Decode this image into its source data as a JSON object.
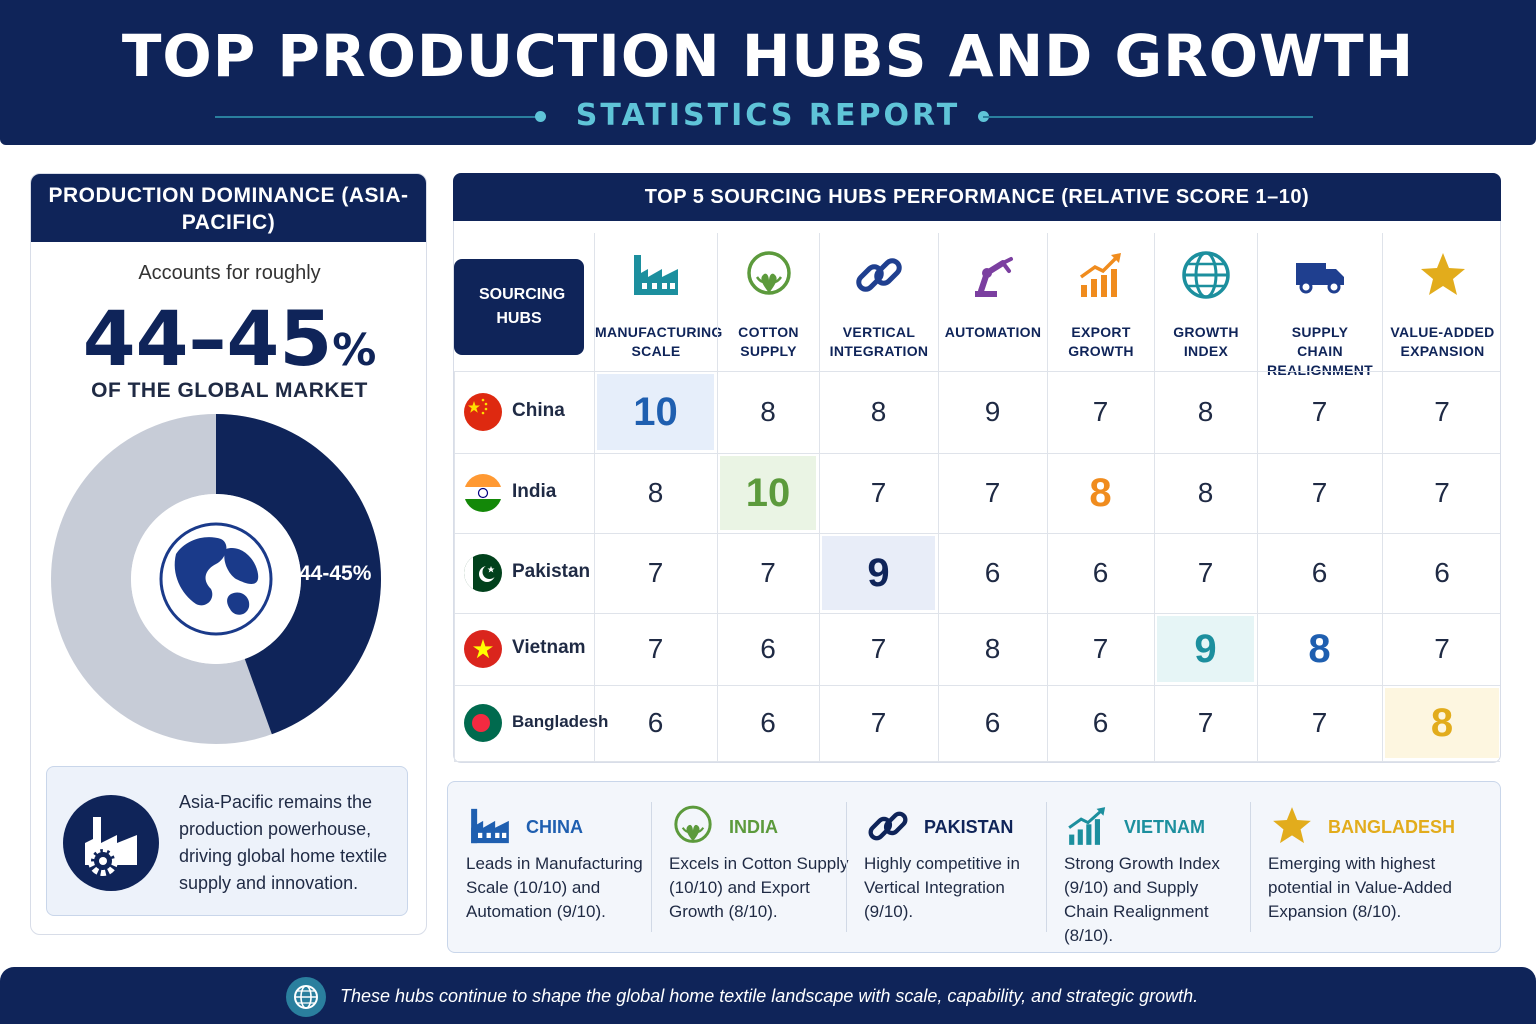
{
  "header": {
    "title": "TOP PRODUCTION HUBS AND GROWTH",
    "subtitle": "STATISTICS REPORT"
  },
  "left_panel": {
    "heading": "PRODUCTION DOMINANCE (ASIA-PACIFIC)",
    "accounts_text": "Accounts for roughly",
    "big_value": "44–45",
    "big_unit": "%",
    "of_text": "OF THE GLOBAL MARKET",
    "donut_label": "44-45%",
    "donut_share": 0.445,
    "note": "Asia-Pacific remains the production powerhouse, driving global home textile supply and innovation."
  },
  "chart_data": {
    "type": "table",
    "title": "TOP 5 SOURCING HUBS PERFORMANCE (RELATIVE SCORE 1–10)",
    "row_header": "SOURCING HUBS",
    "columns": [
      "MANUFACTURING SCALE",
      "COTTON SUPPLY",
      "VERTICAL INTEGRATION",
      "AUTOMATION",
      "EXPORT GROWTH",
      "GROWTH INDEX",
      "SUPPLY CHAIN REALIGNMENT",
      "VALUE-ADDED EXPANSION"
    ],
    "rows": [
      {
        "name": "China",
        "values": [
          10,
          8,
          8,
          9,
          7,
          8,
          7,
          7
        ]
      },
      {
        "name": "India",
        "values": [
          8,
          10,
          7,
          7,
          8,
          8,
          7,
          7
        ]
      },
      {
        "name": "Pakistan",
        "values": [
          7,
          7,
          9,
          6,
          6,
          7,
          6,
          6
        ]
      },
      {
        "name": "Vietnam",
        "values": [
          7,
          6,
          7,
          8,
          7,
          9,
          8,
          7
        ]
      },
      {
        "name": "Bangladesh",
        "values": [
          6,
          6,
          7,
          6,
          6,
          7,
          7,
          8
        ]
      }
    ],
    "highlights": [
      {
        "row": 0,
        "col": 0,
        "color": "#1f5fb0",
        "bg": "#e6eefa"
      },
      {
        "row": 1,
        "col": 1,
        "color": "#5c9a3c",
        "bg": "#eaf4e4"
      },
      {
        "row": 1,
        "col": 4,
        "color": "#f08c1e",
        "bg": ""
      },
      {
        "row": 2,
        "col": 2,
        "color": "#0f2459",
        "bg": "#e8edf8"
      },
      {
        "row": 3,
        "col": 5,
        "color": "#1c8f9e",
        "bg": "#e6f5f6"
      },
      {
        "row": 3,
        "col": 6,
        "color": "#1f5fb0",
        "bg": ""
      },
      {
        "row": 4,
        "col": 7,
        "color": "#e2ac1c",
        "bg": "#fdf6e0"
      }
    ],
    "icons": [
      "factory-icon",
      "cotton-icon",
      "chain-link-icon",
      "robot-arm-icon",
      "growth-arrow-icon",
      "globe-icon",
      "truck-icon",
      "star-icon"
    ],
    "icon_colors": [
      "#1c8f9e",
      "#5c9a3c",
      "#1f3f8f",
      "#7b3fa0",
      "#f08c1e",
      "#1c8f9e",
      "#1f3f8f",
      "#e2ac1c"
    ]
  },
  "summary": [
    {
      "name": "CHINA",
      "desc": "Leads in Manufacturing Scale (10/10) and Automation (9/10).",
      "color": "#1f5fb0",
      "icon": "factory-icon"
    },
    {
      "name": "INDIA",
      "desc": "Excels in Cotton Supply (10/10) and Export Growth (8/10).",
      "color": "#5c9a3c",
      "icon": "cotton-icon"
    },
    {
      "name": "PAKISTAN",
      "desc": "Highly competitive in Vertical Integration (9/10).",
      "color": "#0f2459",
      "icon": "chain-link-icon"
    },
    {
      "name": "VIETNAM",
      "desc": "Strong Growth Index (9/10) and Supply Chain Realignment (8/10).",
      "color": "#1c8f9e",
      "icon": "growth-chart-icon"
    },
    {
      "name": "BANGLADESH",
      "desc": "Emerging with highest potential in Value-Added Expansion (8/10).",
      "color": "#e2ac1c",
      "icon": "star-icon"
    }
  ],
  "footer": {
    "text": "These hubs continue to shape the global home textile landscape with scale, capability, and strategic growth."
  }
}
